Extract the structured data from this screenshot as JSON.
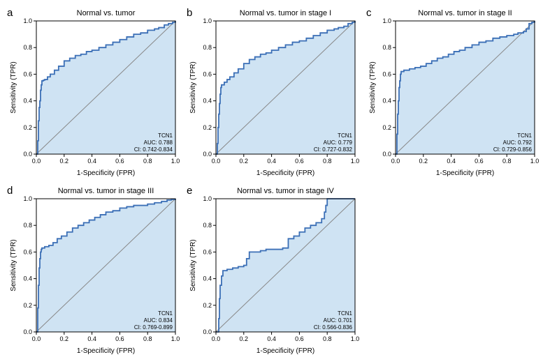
{
  "colors": {
    "line": "#3b6fb6",
    "fill": "#cfe3f3",
    "diag": "#999999",
    "axis": "#000000",
    "bg": "#ffffff"
  },
  "axes": {
    "xlabel": "1-Specificity (FPR)",
    "ylabel": "Sensitivity (TPR)",
    "xlim": [
      0,
      1
    ],
    "ylim": [
      0,
      1
    ],
    "ticks": [
      0.0,
      0.2,
      0.4,
      0.6,
      0.8,
      1.0
    ],
    "tick_labels": [
      "0.0",
      "0.2",
      "0.4",
      "0.6",
      "0.8",
      "1.0"
    ]
  },
  "line_width": 1.8,
  "title_fontsize": 11,
  "label_fontsize": 10,
  "tick_fontsize": 9,
  "stat_fontsize": 8,
  "panels": [
    {
      "id": "a",
      "letter": "a",
      "title": "Normal vs. tumor",
      "stats": [
        "TCN1",
        "AUC: 0.788",
        "CI: 0.742-0.834"
      ],
      "roc": [
        [
          0,
          0
        ],
        [
          0.01,
          0.1
        ],
        [
          0.015,
          0.25
        ],
        [
          0.02,
          0.35
        ],
        [
          0.025,
          0.4
        ],
        [
          0.03,
          0.48
        ],
        [
          0.035,
          0.52
        ],
        [
          0.04,
          0.55
        ],
        [
          0.05,
          0.555
        ],
        [
          0.06,
          0.56
        ],
        [
          0.08,
          0.58
        ],
        [
          0.1,
          0.6
        ],
        [
          0.13,
          0.63
        ],
        [
          0.16,
          0.66
        ],
        [
          0.2,
          0.7
        ],
        [
          0.24,
          0.72
        ],
        [
          0.28,
          0.74
        ],
        [
          0.32,
          0.75
        ],
        [
          0.36,
          0.77
        ],
        [
          0.4,
          0.78
        ],
        [
          0.45,
          0.8
        ],
        [
          0.5,
          0.82
        ],
        [
          0.55,
          0.84
        ],
        [
          0.6,
          0.86
        ],
        [
          0.65,
          0.88
        ],
        [
          0.7,
          0.9
        ],
        [
          0.75,
          0.91
        ],
        [
          0.8,
          0.93
        ],
        [
          0.85,
          0.94
        ],
        [
          0.88,
          0.95
        ],
        [
          0.92,
          0.97
        ],
        [
          0.95,
          0.98
        ],
        [
          0.98,
          0.99
        ],
        [
          1,
          1
        ]
      ]
    },
    {
      "id": "b",
      "letter": "b",
      "title": "Normal vs. tumor in stage I",
      "stats": [
        "TCN1",
        "AUC: 0.779",
        "CI: 0.727-0.832"
      ],
      "roc": [
        [
          0,
          0
        ],
        [
          0.01,
          0.08
        ],
        [
          0.015,
          0.2
        ],
        [
          0.02,
          0.3
        ],
        [
          0.025,
          0.38
        ],
        [
          0.03,
          0.45
        ],
        [
          0.035,
          0.5
        ],
        [
          0.04,
          0.52
        ],
        [
          0.06,
          0.54
        ],
        [
          0.08,
          0.56
        ],
        [
          0.1,
          0.58
        ],
        [
          0.13,
          0.61
        ],
        [
          0.16,
          0.64
        ],
        [
          0.2,
          0.68
        ],
        [
          0.24,
          0.71
        ],
        [
          0.28,
          0.73
        ],
        [
          0.32,
          0.75
        ],
        [
          0.36,
          0.76
        ],
        [
          0.4,
          0.78
        ],
        [
          0.45,
          0.8
        ],
        [
          0.5,
          0.82
        ],
        [
          0.55,
          0.84
        ],
        [
          0.6,
          0.85
        ],
        [
          0.65,
          0.87
        ],
        [
          0.7,
          0.89
        ],
        [
          0.75,
          0.91
        ],
        [
          0.8,
          0.93
        ],
        [
          0.85,
          0.94
        ],
        [
          0.88,
          0.95
        ],
        [
          0.92,
          0.96
        ],
        [
          0.95,
          0.98
        ],
        [
          0.98,
          0.99
        ],
        [
          1,
          1
        ]
      ]
    },
    {
      "id": "c",
      "letter": "c",
      "title": "Normal vs. tumor in stage II",
      "stats": [
        "TCN1",
        "AUC: 0.792",
        "CI: 0.729-0.856"
      ],
      "roc": [
        [
          0,
          0
        ],
        [
          0.01,
          0.15
        ],
        [
          0.015,
          0.3
        ],
        [
          0.02,
          0.4
        ],
        [
          0.025,
          0.5
        ],
        [
          0.03,
          0.55
        ],
        [
          0.035,
          0.6
        ],
        [
          0.04,
          0.62
        ],
        [
          0.06,
          0.63
        ],
        [
          0.1,
          0.64
        ],
        [
          0.14,
          0.65
        ],
        [
          0.18,
          0.66
        ],
        [
          0.22,
          0.68
        ],
        [
          0.26,
          0.7
        ],
        [
          0.3,
          0.72
        ],
        [
          0.34,
          0.73
        ],
        [
          0.38,
          0.75
        ],
        [
          0.42,
          0.77
        ],
        [
          0.46,
          0.78
        ],
        [
          0.5,
          0.8
        ],
        [
          0.55,
          0.82
        ],
        [
          0.6,
          0.84
        ],
        [
          0.65,
          0.85
        ],
        [
          0.7,
          0.87
        ],
        [
          0.75,
          0.88
        ],
        [
          0.8,
          0.89
        ],
        [
          0.85,
          0.9
        ],
        [
          0.88,
          0.91
        ],
        [
          0.92,
          0.92
        ],
        [
          0.94,
          0.94
        ],
        [
          0.96,
          0.98
        ],
        [
          0.98,
          0.99
        ],
        [
          1,
          1
        ]
      ]
    },
    {
      "id": "d",
      "letter": "d",
      "title": "Normal vs. tumor in stage III",
      "stats": [
        "TCN1",
        "AUC: 0.834",
        "CI: 0.769-0.899"
      ],
      "roc": [
        [
          0,
          0
        ],
        [
          0.01,
          0.18
        ],
        [
          0.015,
          0.35
        ],
        [
          0.02,
          0.48
        ],
        [
          0.025,
          0.55
        ],
        [
          0.03,
          0.6
        ],
        [
          0.035,
          0.62
        ],
        [
          0.04,
          0.63
        ],
        [
          0.06,
          0.64
        ],
        [
          0.09,
          0.65
        ],
        [
          0.12,
          0.67
        ],
        [
          0.15,
          0.7
        ],
        [
          0.18,
          0.72
        ],
        [
          0.22,
          0.75
        ],
        [
          0.26,
          0.78
        ],
        [
          0.3,
          0.8
        ],
        [
          0.34,
          0.82
        ],
        [
          0.38,
          0.84
        ],
        [
          0.42,
          0.86
        ],
        [
          0.46,
          0.88
        ],
        [
          0.5,
          0.9
        ],
        [
          0.55,
          0.91
        ],
        [
          0.6,
          0.93
        ],
        [
          0.65,
          0.94
        ],
        [
          0.7,
          0.95
        ],
        [
          0.75,
          0.95
        ],
        [
          0.8,
          0.96
        ],
        [
          0.85,
          0.97
        ],
        [
          0.9,
          0.98
        ],
        [
          0.94,
          0.99
        ],
        [
          0.97,
          0.995
        ],
        [
          1,
          1
        ]
      ]
    },
    {
      "id": "e",
      "letter": "e",
      "title": "Normal vs. tumor in stage IV",
      "stats": [
        "TCN1",
        "AUC: 0.701",
        "CI: 0.566-0.836"
      ],
      "roc": [
        [
          0,
          0
        ],
        [
          0.02,
          0.1
        ],
        [
          0.025,
          0.25
        ],
        [
          0.03,
          0.35
        ],
        [
          0.04,
          0.42
        ],
        [
          0.05,
          0.46
        ],
        [
          0.08,
          0.47
        ],
        [
          0.12,
          0.48
        ],
        [
          0.16,
          0.49
        ],
        [
          0.2,
          0.5
        ],
        [
          0.22,
          0.55
        ],
        [
          0.24,
          0.6
        ],
        [
          0.28,
          0.6
        ],
        [
          0.32,
          0.61
        ],
        [
          0.36,
          0.62
        ],
        [
          0.4,
          0.62
        ],
        [
          0.44,
          0.62
        ],
        [
          0.48,
          0.63
        ],
        [
          0.52,
          0.7
        ],
        [
          0.56,
          0.72
        ],
        [
          0.6,
          0.75
        ],
        [
          0.64,
          0.78
        ],
        [
          0.68,
          0.8
        ],
        [
          0.72,
          0.82
        ],
        [
          0.76,
          0.85
        ],
        [
          0.78,
          0.9
        ],
        [
          0.79,
          0.95
        ],
        [
          0.8,
          1.0
        ],
        [
          0.85,
          1.0
        ],
        [
          0.9,
          1.0
        ],
        [
          0.95,
          1.0
        ],
        [
          1,
          1
        ]
      ]
    }
  ]
}
